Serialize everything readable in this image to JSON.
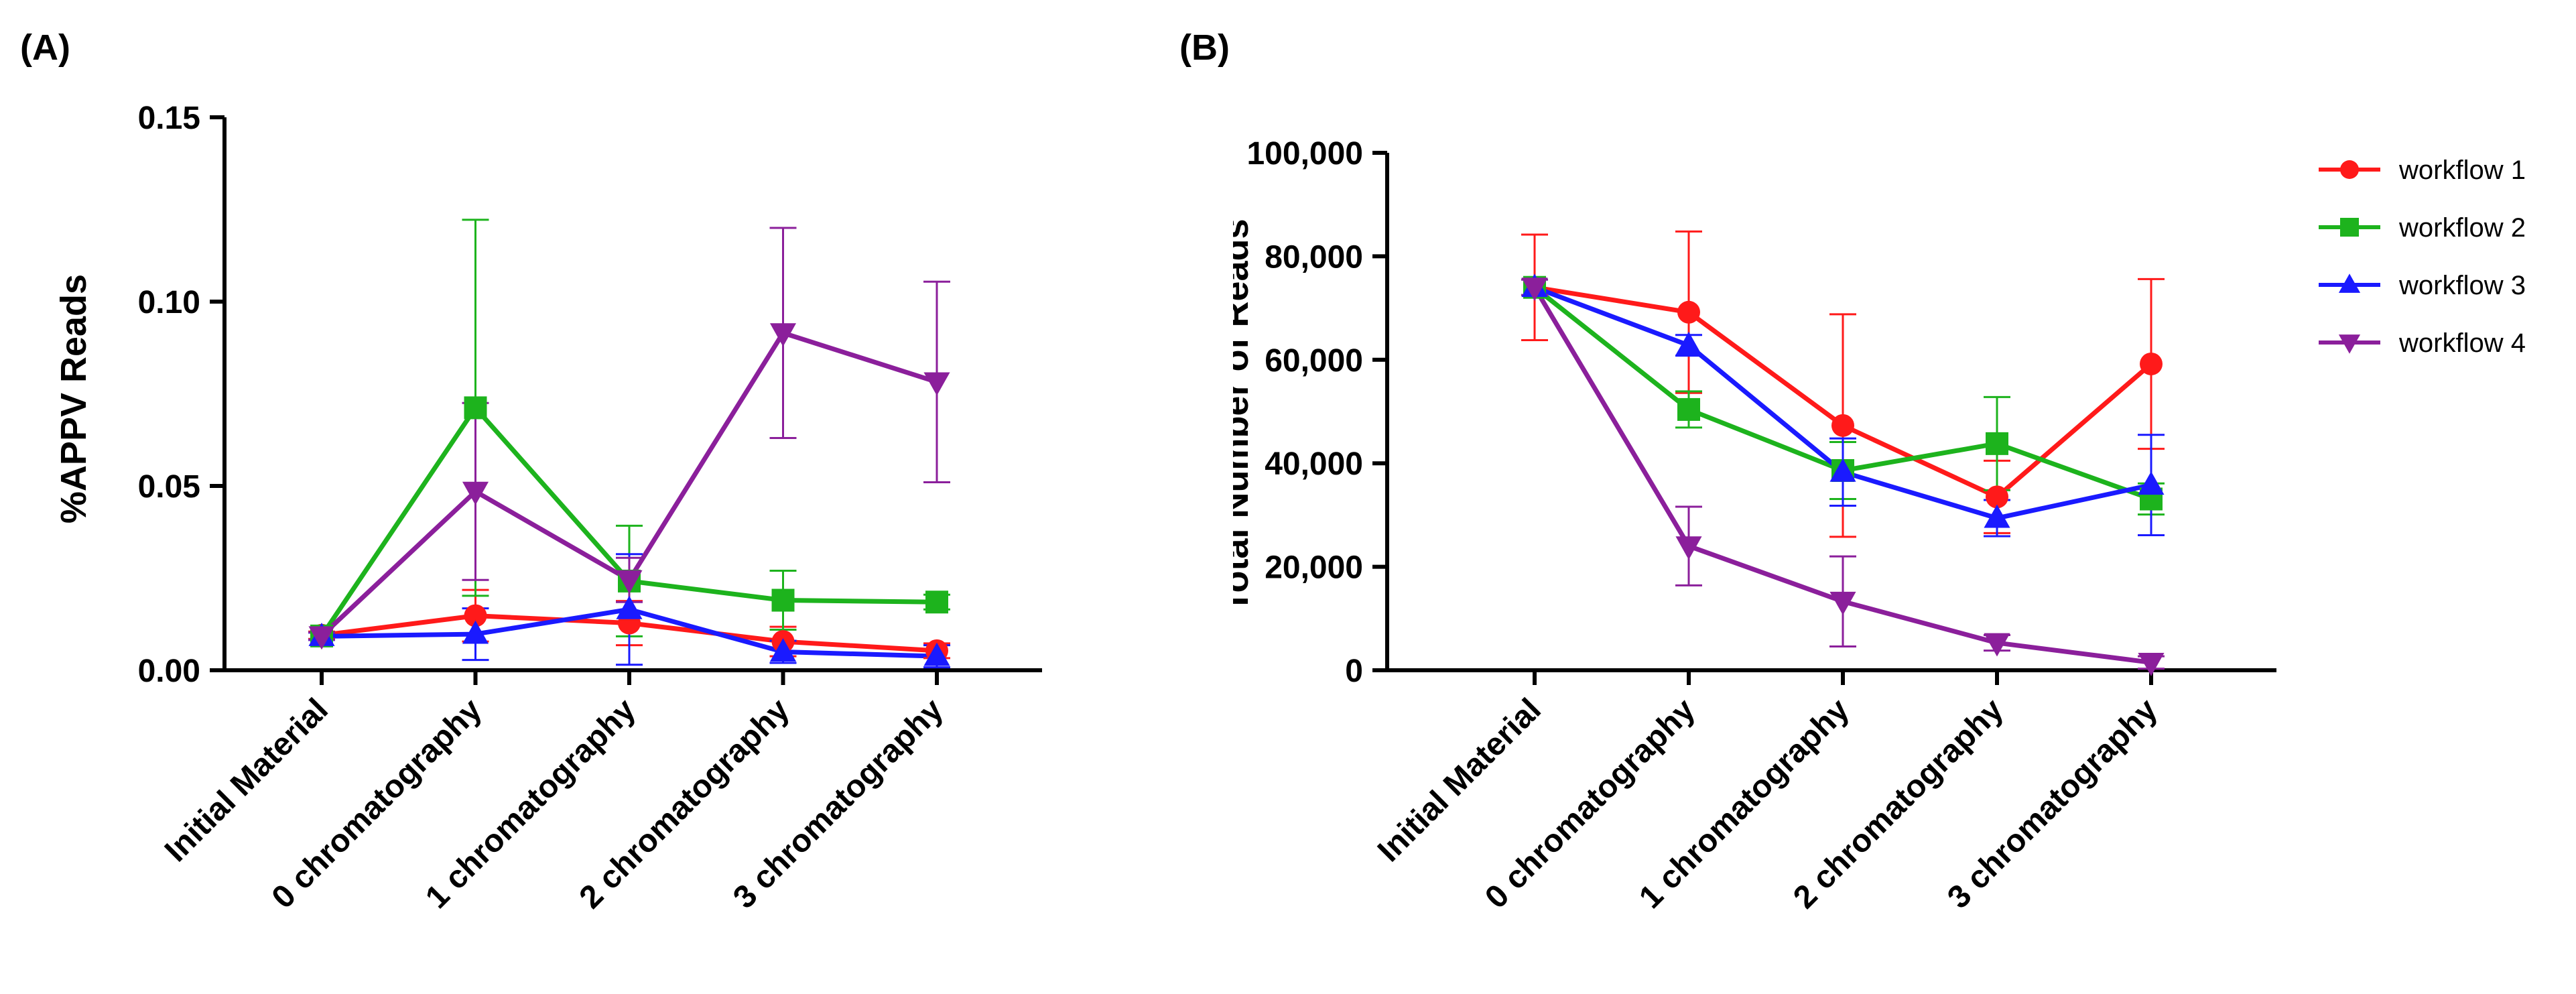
{
  "panel_labels": [
    "(A)",
    "(B)"
  ],
  "chart_data": [
    {
      "type": "line",
      "panel": "(A)",
      "title": "",
      "xlabel": "",
      "ylabel": "%APPV Reads",
      "ylim": [
        0,
        0.15
      ],
      "yticks": [
        0,
        0.05,
        0.1,
        0.15
      ],
      "ytick_labels": [
        "0.00",
        "0.05",
        "0.10",
        "0.15"
      ],
      "categories": [
        "Initial Material",
        "0 chromatography",
        "1 chromatography",
        "2 chromatography",
        "3 chromatography"
      ],
      "series": [
        {
          "name": "workflow 1",
          "color": "#ff1a1a",
          "marker": "circle",
          "values": [
            0.0095,
            0.0148,
            0.0128,
            0.0078,
            0.0053
          ],
          "errors": [
            0.001,
            0.007,
            0.006,
            0.004,
            0.002
          ]
        },
        {
          "name": "workflow 2",
          "color": "#1db31d",
          "marker": "square",
          "values": [
            0.0093,
            0.0712,
            0.0242,
            0.019,
            0.0185
          ],
          "errors": [
            0.001,
            0.051,
            0.015,
            0.008,
            0.002
          ]
        },
        {
          "name": "workflow 3",
          "color": "#1a1aff",
          "marker": "triangle-up",
          "values": [
            0.0092,
            0.0098,
            0.0165,
            0.005,
            0.0038
          ],
          "errors": [
            0.001,
            0.007,
            0.015,
            0.003,
            0.003
          ]
        },
        {
          "name": "workflow 4",
          "color": "#8b1f9b",
          "marker": "triangle-down",
          "values": [
            0.0093,
            0.0485,
            0.0245,
            0.0915,
            0.0782
          ],
          "errors": [
            0.001,
            0.024,
            0.006,
            0.0285,
            0.0272
          ]
        }
      ]
    },
    {
      "type": "line",
      "panel": "(B)",
      "title": "",
      "xlabel": "",
      "ylabel": "Total Number of Reads",
      "ylim": [
        0,
        100000
      ],
      "yticks": [
        0,
        20000,
        40000,
        60000,
        80000,
        100000
      ],
      "ytick_labels": [
        "0",
        "20,000",
        "40,000",
        "60,000",
        "80,000",
        "100,000"
      ],
      "categories": [
        "Initial Material",
        "0 chromatography",
        "1 chromatography",
        "2 chromatography",
        "3 chromatography"
      ],
      "legend_position": "top-right",
      "series": [
        {
          "name": "workflow 1",
          "color": "#ff1a1a",
          "marker": "circle",
          "values": [
            74000,
            69200,
            47300,
            33500,
            59200
          ],
          "errors": [
            10200,
            15600,
            21500,
            7000,
            16400
          ]
        },
        {
          "name": "workflow 2",
          "color": "#1db31d",
          "marker": "square",
          "values": [
            74000,
            50400,
            38600,
            43800,
            33100
          ],
          "errors": [
            1500,
            3500,
            5500,
            9000,
            3000
          ]
        },
        {
          "name": "workflow 3",
          "color": "#1a1aff",
          "marker": "triangle-up",
          "values": [
            74000,
            62800,
            38300,
            29400,
            35800
          ],
          "errors": [
            1500,
            2000,
            6500,
            3500,
            9700
          ]
        },
        {
          "name": "workflow 4",
          "color": "#8b1f9b",
          "marker": "triangle-down",
          "values": [
            74000,
            24000,
            13300,
            5300,
            1500
          ],
          "errors": [
            1500,
            7600,
            8700,
            1500,
            1200
          ]
        }
      ]
    }
  ]
}
